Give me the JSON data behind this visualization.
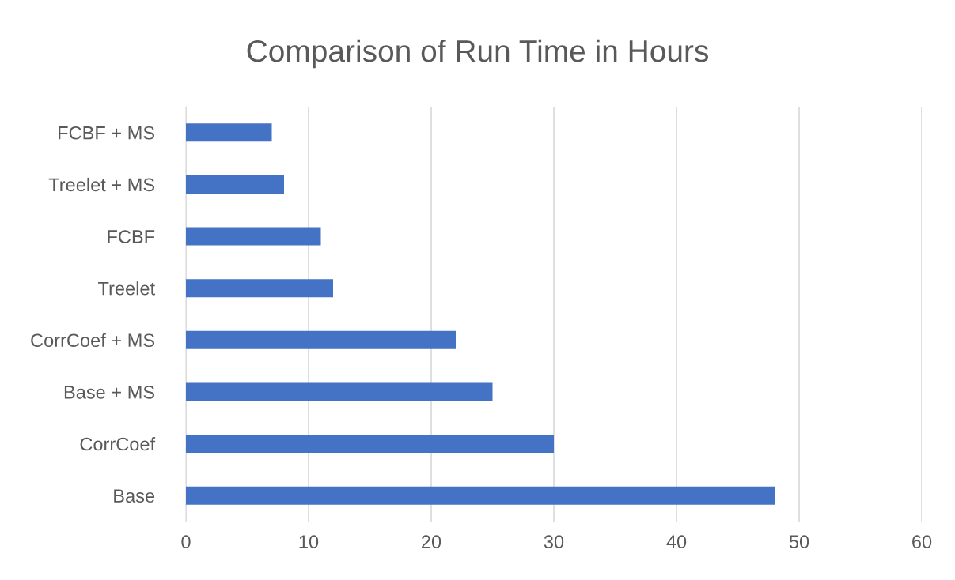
{
  "chart_data": {
    "type": "bar",
    "orientation": "horizontal",
    "title": "Comparison of Run Time in Hours",
    "categories": [
      "FCBF + MS",
      "Treelet + MS",
      "FCBF",
      "Treelet",
      "CorrCoef + MS",
      "Base + MS",
      "CorrCoef",
      "Base"
    ],
    "values": [
      7,
      8,
      11,
      12,
      22,
      25,
      30,
      48
    ],
    "color": "#4472c4",
    "xlim": [
      0,
      60
    ],
    "xticks": [
      0,
      10,
      20,
      30,
      40,
      50,
      60
    ],
    "grid": "x"
  }
}
